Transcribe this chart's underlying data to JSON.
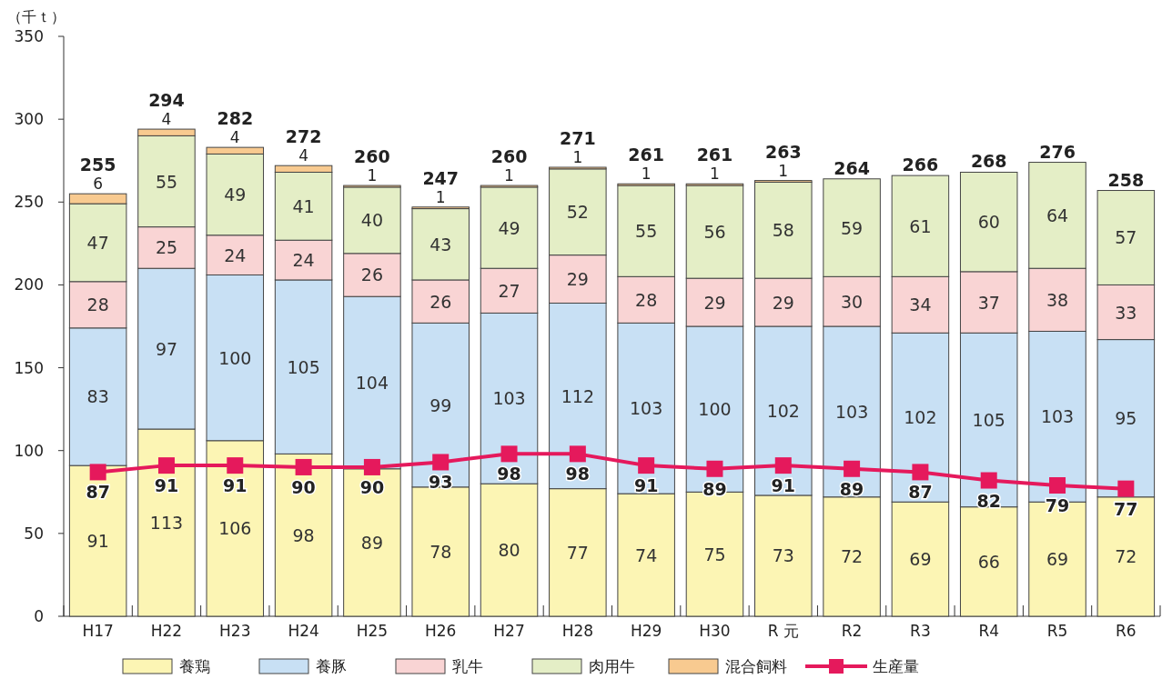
{
  "chart_data": {
    "type": "bar",
    "stacked": true,
    "ylabel": "（千ｔ）",
    "ylim": [
      0,
      350
    ],
    "yticks": [
      0,
      50,
      100,
      150,
      200,
      250,
      300,
      350
    ],
    "grid": false,
    "legend": "bottom",
    "data_labels": true,
    "categories": [
      "H17",
      "H22",
      "H23",
      "H24",
      "H25",
      "H26",
      "H27",
      "H28",
      "H29",
      "H30",
      "R 元",
      "R2",
      "R3",
      "R4",
      "R5",
      "R6"
    ],
    "series": [
      {
        "name": "養鶏",
        "color": "#fcf5b4",
        "values": [
          91,
          113,
          106,
          98,
          89,
          78,
          80,
          77,
          74,
          75,
          73,
          72,
          69,
          66,
          69,
          72
        ]
      },
      {
        "name": "養豚",
        "color": "#c8e0f4",
        "values": [
          83,
          97,
          100,
          105,
          104,
          99,
          103,
          112,
          103,
          100,
          102,
          103,
          102,
          105,
          103,
          95
        ]
      },
      {
        "name": "乳牛",
        "color": "#f9d4d4",
        "values": [
          28,
          25,
          24,
          24,
          26,
          26,
          27,
          29,
          28,
          29,
          29,
          30,
          34,
          37,
          38,
          33
        ]
      },
      {
        "name": "肉用牛",
        "color": "#e4eec6",
        "values": [
          47,
          55,
          49,
          41,
          40,
          43,
          49,
          52,
          55,
          56,
          58,
          59,
          61,
          60,
          64,
          57
        ]
      },
      {
        "name": "混合飼料",
        "color": "#f8ca90",
        "values": [
          6,
          4,
          4,
          4,
          1,
          1,
          1,
          1,
          1,
          1,
          1,
          null,
          null,
          null,
          null,
          null
        ]
      },
      {
        "name": "生産量",
        "type": "line",
        "color": "#e5195c",
        "marker": "square",
        "values": [
          87,
          91,
          91,
          90,
          90,
          93,
          98,
          98,
          91,
          89,
          91,
          89,
          87,
          82,
          79,
          77
        ]
      }
    ],
    "totals": [
      "255",
      "294",
      "282",
      "272",
      "260",
      "247",
      "260",
      "271",
      "261",
      "261",
      "263",
      "264",
      "266",
      "268",
      "276",
      "258"
    ]
  }
}
